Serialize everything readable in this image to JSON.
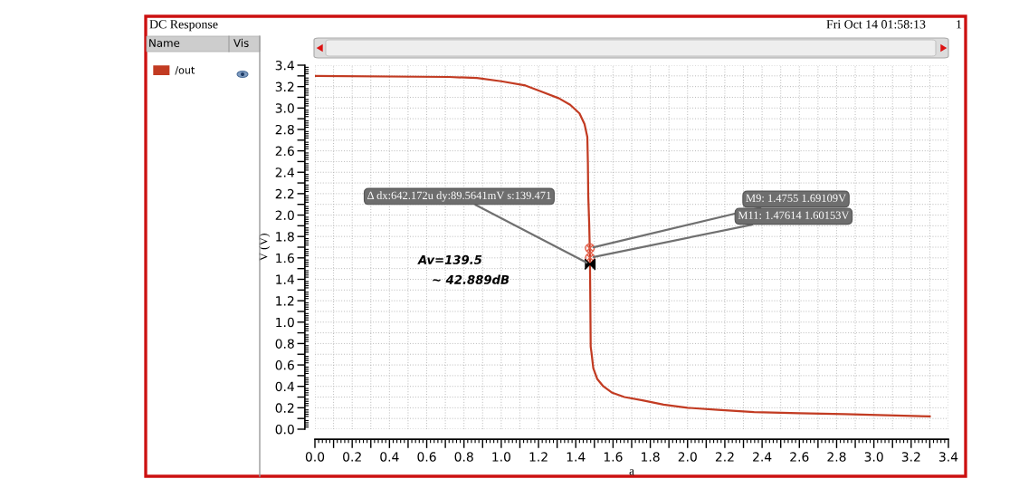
{
  "chart_data": {
    "type": "line",
    "title": "DC Response",
    "subtitle": "Fri Oct 14 01:58:13",
    "xlabel": "a",
    "ylabel": "V (V)",
    "legend_title": "Name",
    "x": [
      0,
      0.72,
      0.87,
      1.0,
      1.13,
      1.22,
      1.31,
      1.37,
      1.42,
      1.447,
      1.462,
      1.465,
      1.467,
      1.472,
      1.475,
      1.476,
      1.478,
      1.48,
      1.484,
      1.494,
      1.515,
      1.548,
      1.596,
      1.661,
      1.758,
      1.871,
      2.0,
      2.163,
      2.357,
      2.6,
      2.843,
      3.07,
      3.3
    ],
    "series": [
      {
        "name": "/out",
        "color": "#c23b22",
        "values": [
          3.3,
          3.29,
          3.28,
          3.25,
          3.21,
          3.15,
          3.09,
          3.03,
          2.95,
          2.85,
          2.73,
          2.49,
          2.18,
          1.92,
          1.69,
          1.6,
          1.2,
          0.77,
          0.72,
          0.57,
          0.47,
          0.4,
          0.34,
          0.3,
          0.27,
          0.23,
          0.2,
          0.18,
          0.16,
          0.15,
          0.14,
          0.13,
          0.12
        ]
      }
    ],
    "xlim": [
      0,
      3.4
    ],
    "ylim": [
      0,
      3.4
    ],
    "xticks": [
      {
        "value": 0,
        "label": "0.0"
      },
      {
        "value": 0.1,
        "label": null
      },
      0.2,
      {
        "value": 0.3,
        "label": null
      },
      0.4,
      {
        "value": 0.5,
        "label": null
      },
      0.6,
      {
        "value": 0.7,
        "label": null
      },
      0.8,
      {
        "value": 0.9,
        "label": null
      },
      {
        "value": 1,
        "label": "1.0"
      },
      {
        "value": 1.1,
        "label": null
      },
      1.2,
      {
        "value": 1.3,
        "label": null
      },
      1.4,
      {
        "value": 1.5,
        "label": null
      },
      1.6,
      {
        "value": 1.7,
        "label": null
      },
      1.8,
      {
        "value": 1.9,
        "label": null
      },
      {
        "value": 2,
        "label": "2.0"
      },
      {
        "value": 2.1,
        "label": null
      },
      2.2,
      {
        "value": 2.3,
        "label": null
      },
      2.4,
      {
        "value": 2.5,
        "label": null
      },
      2.6,
      {
        "value": 2.7,
        "label": null
      },
      2.8,
      {
        "value": 2.9,
        "label": null
      },
      {
        "value": 3,
        "label": "3.0"
      },
      {
        "value": 3.1,
        "label": null
      },
      3.2,
      {
        "value": 3.3,
        "label": null
      },
      3.4
    ],
    "yticks": [
      {
        "value": 0,
        "label": "0.0"
      },
      {
        "value": 0.1,
        "label": null
      },
      0.2,
      {
        "value": 0.3,
        "label": null
      },
      0.4,
      {
        "value": 0.5,
        "label": null
      },
      0.6,
      {
        "value": 0.7,
        "label": null
      },
      0.8,
      {
        "value": 0.9,
        "label": null
      },
      {
        "value": 1,
        "label": "1.0"
      },
      {
        "value": 1.1,
        "label": null
      },
      1.2,
      {
        "value": 1.3,
        "label": null
      },
      1.4,
      {
        "value": 1.5,
        "label": null
      },
      1.6,
      {
        "value": 1.7,
        "label": null
      },
      1.8,
      {
        "value": 1.9,
        "label": null
      },
      {
        "value": 2,
        "label": "2.0"
      },
      {
        "value": 2.1,
        "label": null
      },
      2.2,
      {
        "value": 2.3,
        "label": null
      },
      2.4,
      {
        "value": 2.5,
        "label": null
      },
      2.6,
      {
        "value": 2.7,
        "label": null
      },
      2.8,
      {
        "value": 2.9,
        "label": null
      },
      {
        "value": 3,
        "label": "3.0"
      },
      {
        "value": 3.1,
        "label": null
      },
      3.2,
      {
        "value": 3.3,
        "label": null
      },
      3.4
    ],
    "grid": true,
    "legend": "left",
    "annotations": [
      "Av=139.5",
      "~ 42.889dB",
      "Vis",
      "1",
      {
        "text": "M9: 1.4755 1.69109V",
        "x": 1.4755,
        "y": 1.69109
      },
      {
        "text": "M11: 1.47614 1.60153V",
        "x": 1.47614,
        "y": 1.60153
      },
      {
        "text": "Δ dx:642.172u dy:89.5641mV s:139.471",
        "x": 1.476,
        "y": 1.54
      }
    ]
  }
}
